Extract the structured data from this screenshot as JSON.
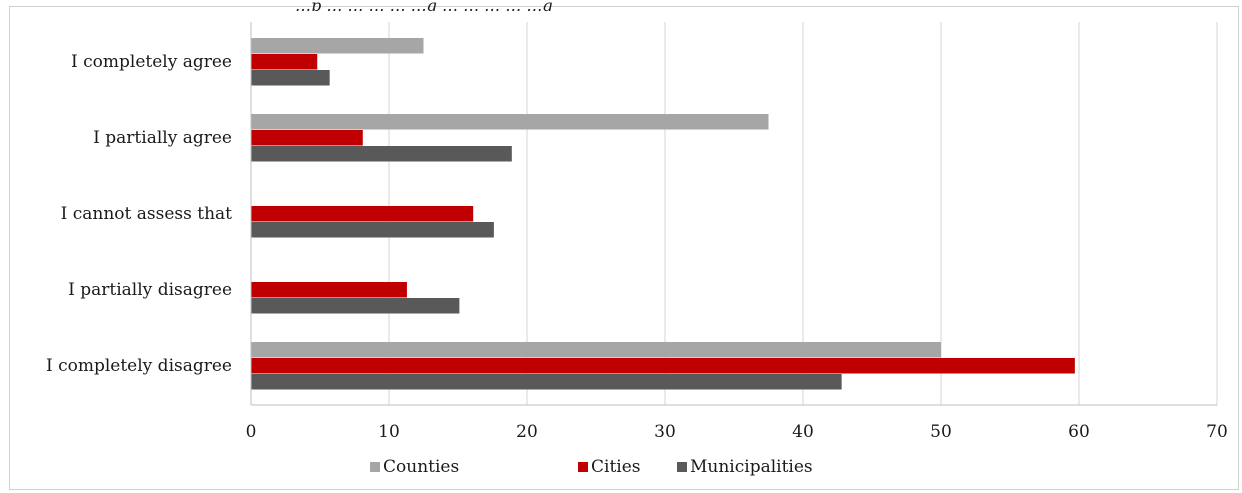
{
  "chart_data": {
    "type": "bar",
    "orientation": "horizontal",
    "categories": [
      "I completely agree",
      "I partially agree",
      "I cannot assess that",
      "I partially disagree",
      "I completely disagree"
    ],
    "series": [
      {
        "name": "Counties",
        "values": [
          12.5,
          37.5,
          0,
          0,
          50
        ],
        "color": "#a6a6a6"
      },
      {
        "name": "Cities",
        "values": [
          4.8,
          8.1,
          16.1,
          11.3,
          59.7
        ],
        "color": "#c00000"
      },
      {
        "name": "Municipalities",
        "values": [
          5.7,
          18.9,
          17.6,
          15.1,
          42.8
        ],
        "color": "#595959"
      }
    ],
    "xlim": [
      0,
      70
    ],
    "x_ticks": [
      "0",
      "10",
      "20",
      "30",
      "40",
      "50",
      "60",
      "70"
    ],
    "grid": true,
    "legend": "bottom",
    "title": "…p … … … … …g … … … … …g"
  }
}
